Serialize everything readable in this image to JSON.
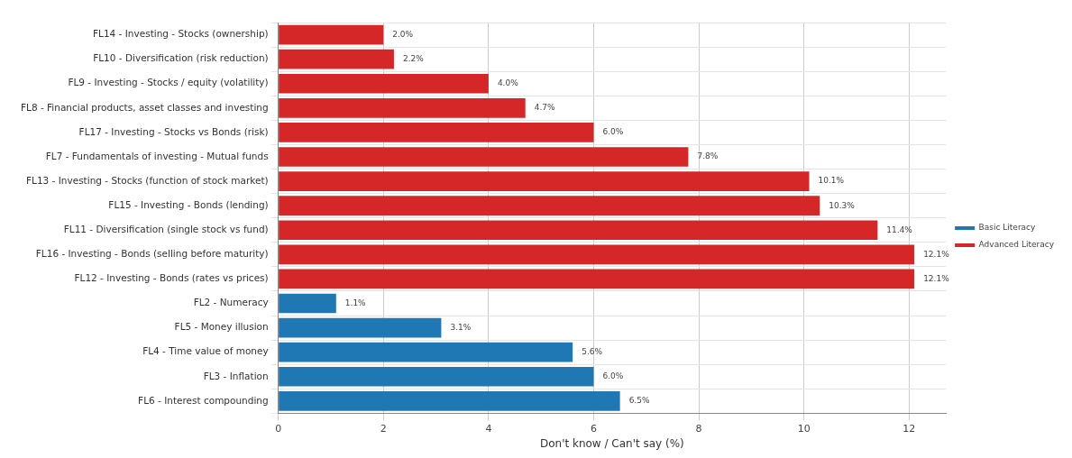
{
  "chart_data": {
    "type": "bar",
    "orientation": "horizontal",
    "xlabel": "Don't know / Can't say (%)",
    "categories": [
      "FL14 - Investing - Stocks (ownership)",
      "FL10 - Diversification (risk reduction)",
      "FL9 - Investing - Stocks / equity (volatility)",
      "FL8 - Financial products, asset classes and investing",
      "FL17 - Investing - Stocks vs Bonds (risk)",
      "FL7 - Fundamentals of investing - Mutual funds",
      "FL13 - Investing - Stocks (function of stock market)",
      "FL15 - Investing - Bonds (lending)",
      "FL11 - Diversification (single stock vs fund)",
      "FL16 - Investing - Bonds (selling before maturity)",
      "FL12 - Investing - Bonds (rates vs prices)",
      "FL2 - Numeracy",
      "FL5 - Money illusion",
      "FL4 - Time value of money",
      "FL3 - Inflation",
      "FL6 - Interest compounding"
    ],
    "series": [
      {
        "name": "Basic Literacy",
        "color": "#1f77b4",
        "values": [
          null,
          null,
          null,
          null,
          null,
          null,
          null,
          null,
          null,
          null,
          null,
          1.1,
          3.1,
          5.6,
          6.0,
          6.5
        ],
        "value_labels": [
          null,
          null,
          null,
          null,
          null,
          null,
          null,
          null,
          null,
          null,
          null,
          "1.1%",
          "3.1%",
          "5.6%",
          "6.0%",
          "6.5%"
        ]
      },
      {
        "name": "Advanced Literacy",
        "color": "#d62728",
        "values": [
          2.0,
          2.2,
          4.0,
          4.7,
          6.0,
          7.8,
          10.1,
          10.3,
          11.4,
          12.1,
          12.1,
          null,
          null,
          null,
          null,
          null
        ],
        "value_labels": [
          "2.0%",
          "2.2%",
          "4.0%",
          "4.7%",
          "6.0%",
          "7.8%",
          "10.1%",
          "10.3%",
          "11.4%",
          "12.1%",
          "12.1%",
          null,
          null,
          null,
          null,
          null
        ]
      }
    ],
    "xlim": [
      0,
      12.7
    ],
    "xticks": [
      0,
      2,
      4,
      6,
      8,
      10,
      12
    ],
    "grid": true,
    "legend": "right"
  }
}
